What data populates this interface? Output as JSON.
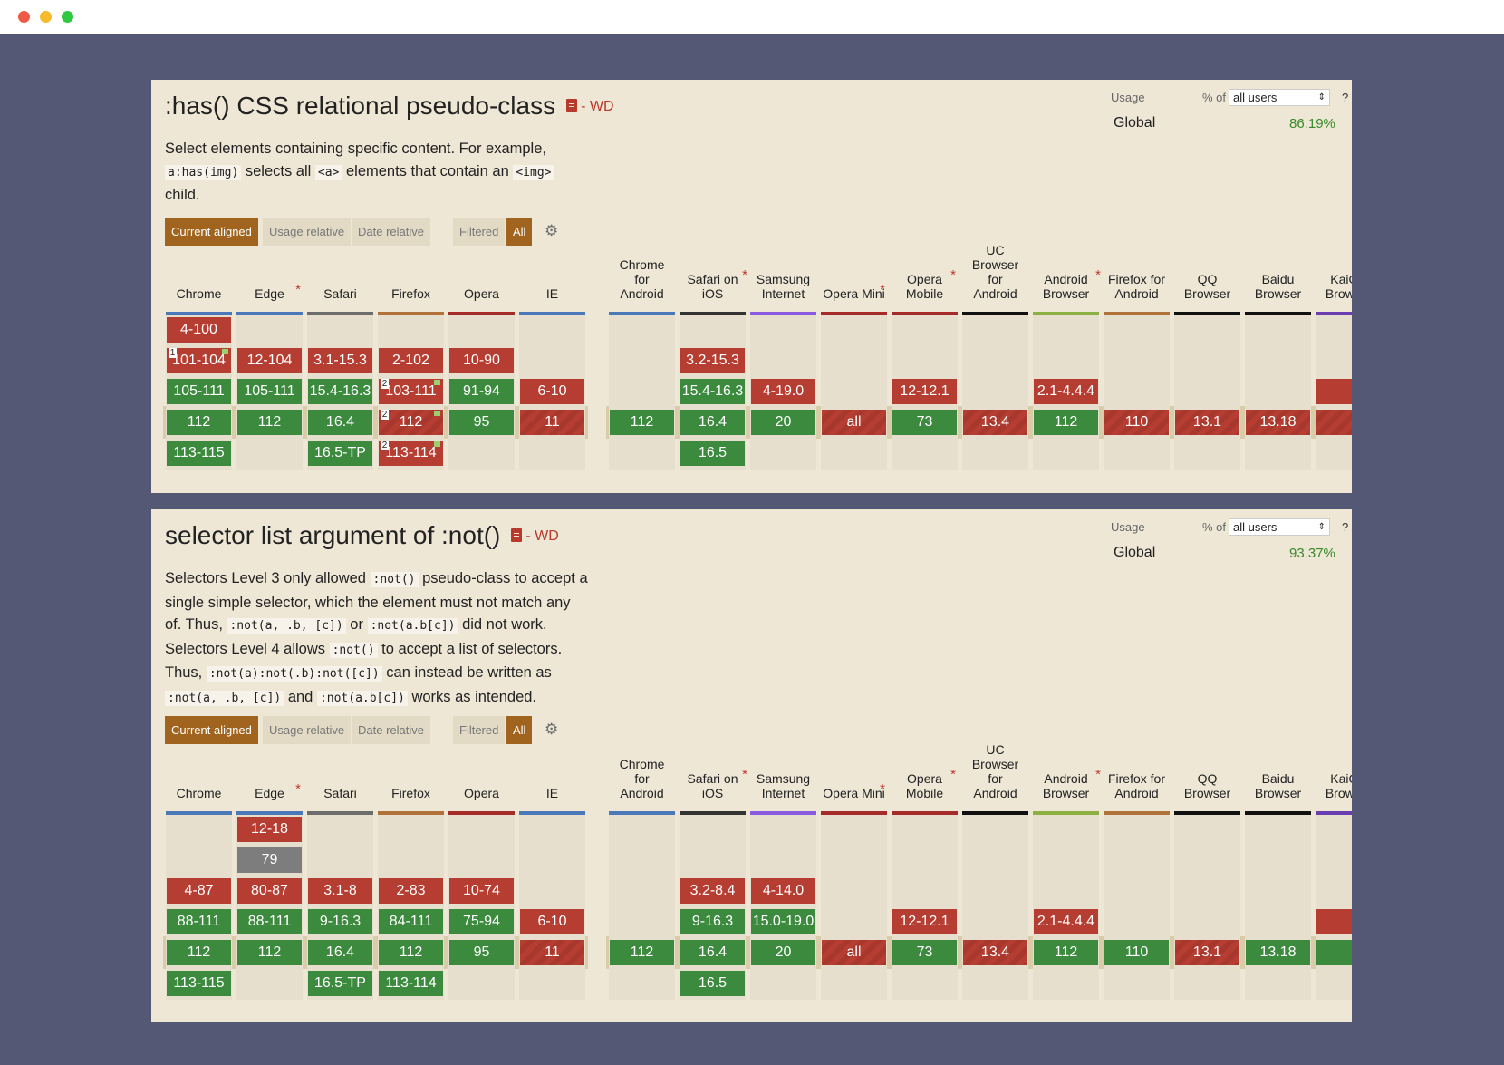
{
  "window": {
    "controls": [
      "close",
      "minimize",
      "maximize"
    ]
  },
  "cards": [
    {
      "title": ":has() CSS relational pseudo-class",
      "status": "- WD",
      "description_html": "Select elements containing specific content. For example, <code>a:has(img)</code> selects all <code>&lt;a&gt;</code> elements that contain an <code>&lt;img&gt;</code> child.",
      "usage": {
        "label": "Usage",
        "pct_of": "% of",
        "select_value": "all users",
        "help": "?",
        "global_label": "Global",
        "global_value": "86.19%"
      },
      "toolbar": {
        "current_aligned": "Current aligned",
        "usage_relative": "Usage relative",
        "date_relative": "Date relative",
        "filtered": "Filtered",
        "all": "All"
      },
      "desktop": [
        {
          "name": "Chrome",
          "star": false,
          "color": "#4a78b8",
          "cells": [
            [
              "n",
              "4-100"
            ],
            [
              "n",
              "101-104",
              1,
              true
            ],
            [
              "y",
              "105-111"
            ],
            [
              "y",
              "112"
            ],
            [
              "y",
              "113-115"
            ]
          ]
        },
        {
          "name": "Edge",
          "star": true,
          "color": "#4a78b8",
          "cells": [
            [],
            [
              "n",
              "12-104"
            ],
            [
              "y",
              "105-111"
            ],
            [
              "y",
              "112"
            ],
            []
          ]
        },
        {
          "name": "Safari",
          "star": false,
          "color": "#6d6d6d",
          "cells": [
            [],
            [
              "n",
              "3.1-15.3"
            ],
            [
              "y",
              "15.4-16.3"
            ],
            [
              "y",
              "16.4"
            ],
            [
              "y",
              "16.5-TP"
            ]
          ]
        },
        {
          "name": "Firefox",
          "star": false,
          "color": "#b07238",
          "cells": [
            [],
            [
              "n",
              "2-102"
            ],
            [
              "n",
              "103-111",
              2,
              true
            ],
            [
              "n",
              "112",
              2,
              true
            ],
            [
              "n",
              "113-114",
              2,
              true
            ]
          ]
        },
        {
          "name": "Opera",
          "star": false,
          "color": "#a52a2a",
          "cells": [
            [],
            [
              "n",
              "10-90"
            ],
            [
              "y",
              "91-94"
            ],
            [
              "y",
              "95"
            ],
            []
          ]
        },
        {
          "name": "IE",
          "star": false,
          "color": "#4a78b8",
          "cells": [
            [],
            [],
            [
              "n",
              "6-10"
            ],
            [
              "n",
              "11"
            ],
            []
          ]
        }
      ],
      "mobile": [
        {
          "name": "Chrome for Android",
          "star": false,
          "color": "#4a78b8",
          "cells": [
            [],
            [],
            [],
            [
              "y",
              "112"
            ],
            []
          ]
        },
        {
          "name": "Safari on iOS",
          "star": true,
          "color": "#333333",
          "cells": [
            [],
            [
              "n",
              "3.2-15.3"
            ],
            [
              "y",
              "15.4-16.3"
            ],
            [
              "y",
              "16.4"
            ],
            [
              "y",
              "16.5"
            ]
          ]
        },
        {
          "name": "Samsung Internet",
          "star": false,
          "color": "#8a5be0",
          "cells": [
            [],
            [],
            [
              "n",
              "4-19.0"
            ],
            [
              "y",
              "20"
            ],
            []
          ]
        },
        {
          "name": "Opera Mini",
          "star": true,
          "color": "#a52a2a",
          "cells": [
            [],
            [],
            [],
            [
              "n",
              "all"
            ],
            []
          ]
        },
        {
          "name": "Opera Mobile",
          "star": true,
          "color": "#a52a2a",
          "cells": [
            [],
            [],
            [
              "n",
              "12-12.1"
            ],
            [
              "y",
              "73"
            ],
            []
          ]
        },
        {
          "name": "UC Browser for Android",
          "star": false,
          "color": "#111111",
          "cells": [
            [],
            [],
            [],
            [
              "n",
              "13.4"
            ],
            []
          ]
        },
        {
          "name": "Android Browser",
          "star": true,
          "color": "#8cb042",
          "cells": [
            [],
            [],
            [
              "n",
              "2.1-4.4.4"
            ],
            [
              "y",
              "112"
            ],
            []
          ]
        },
        {
          "name": "Firefox for Android",
          "star": false,
          "color": "#b07238",
          "cells": [
            [],
            [],
            [],
            [
              "n",
              "110"
            ],
            []
          ]
        },
        {
          "name": "QQ Browser",
          "star": false,
          "color": "#111111",
          "cells": [
            [],
            [],
            [],
            [
              "n",
              "13.1"
            ],
            []
          ]
        },
        {
          "name": "Baidu Browser",
          "star": false,
          "color": "#111111",
          "cells": [
            [],
            [],
            [],
            [
              "n",
              "13.18"
            ],
            []
          ]
        },
        {
          "name": "KaiOS Browser",
          "star": false,
          "color": "#6a3db0",
          "cells": [
            [],
            [],
            [
              "n",
              ""
            ],
            [
              "n",
              ""
            ],
            []
          ]
        }
      ]
    },
    {
      "title": "selector list argument of :not()",
      "status": "- WD",
      "description_html": "Selectors Level 3 only allowed <code>:not()</code> pseudo-class to accept a single simple selector, which the element must not match any of. Thus, <code>:not(a, .b, [c])</code> or <code>:not(a.b[c])</code> did not work. Selectors Level 4 allows <code>:not()</code> to accept a list of selectors. Thus, <code>:not(a):not(.b):not([c])</code> can instead be written as <code>:not(a, .b, [c])</code> and <code>:not(a.b[c])</code> works as intended.",
      "usage": {
        "label": "Usage",
        "pct_of": "% of",
        "select_value": "all users",
        "help": "?",
        "global_label": "Global",
        "global_value": "93.37%"
      },
      "toolbar": {
        "current_aligned": "Current aligned",
        "usage_relative": "Usage relative",
        "date_relative": "Date relative",
        "filtered": "Filtered",
        "all": "All"
      },
      "desktop": [
        {
          "name": "Chrome",
          "star": false,
          "color": "#4a78b8",
          "cells": [
            [],
            [],
            [
              "n",
              "4-87"
            ],
            [
              "y",
              "88-111"
            ],
            [
              "y",
              "112"
            ],
            [
              "y",
              "113-115"
            ]
          ]
        },
        {
          "name": "Edge",
          "star": true,
          "color": "#4a78b8",
          "cells": [
            [
              "n",
              "12-18"
            ],
            [
              "u",
              "79"
            ],
            [
              "n",
              "80-87"
            ],
            [
              "y",
              "88-111"
            ],
            [
              "y",
              "112"
            ],
            []
          ]
        },
        {
          "name": "Safari",
          "star": false,
          "color": "#6d6d6d",
          "cells": [
            [],
            [],
            [
              "n",
              "3.1-8"
            ],
            [
              "y",
              "9-16.3"
            ],
            [
              "y",
              "16.4"
            ],
            [
              "y",
              "16.5-TP"
            ]
          ]
        },
        {
          "name": "Firefox",
          "star": false,
          "color": "#b07238",
          "cells": [
            [],
            [],
            [
              "n",
              "2-83"
            ],
            [
              "y",
              "84-111"
            ],
            [
              "y",
              "112"
            ],
            [
              "y",
              "113-114"
            ]
          ]
        },
        {
          "name": "Opera",
          "star": false,
          "color": "#a52a2a",
          "cells": [
            [],
            [],
            [
              "n",
              "10-74"
            ],
            [
              "y",
              "75-94"
            ],
            [
              "y",
              "95"
            ],
            []
          ]
        },
        {
          "name": "IE",
          "star": false,
          "color": "#4a78b8",
          "cells": [
            [],
            [],
            [],
            [
              "n",
              "6-10"
            ],
            [
              "n",
              "11"
            ],
            []
          ]
        }
      ],
      "mobile": [
        {
          "name": "Chrome for Android",
          "star": false,
          "color": "#4a78b8",
          "cells": [
            [],
            [],
            [],
            [],
            [
              "y",
              "112"
            ],
            []
          ]
        },
        {
          "name": "Safari on iOS",
          "star": true,
          "color": "#333333",
          "cells": [
            [],
            [],
            [
              "n",
              "3.2-8.4"
            ],
            [
              "y",
              "9-16.3"
            ],
            [
              "y",
              "16.4"
            ],
            [
              "y",
              "16.5"
            ]
          ]
        },
        {
          "name": "Samsung Internet",
          "star": false,
          "color": "#8a5be0",
          "cells": [
            [],
            [],
            [
              "n",
              "4-14.0"
            ],
            [
              "y",
              "15.0-19.0"
            ],
            [
              "y",
              "20"
            ],
            []
          ]
        },
        {
          "name": "Opera Mini",
          "star": true,
          "color": "#a52a2a",
          "cells": [
            [],
            [],
            [],
            [],
            [
              "n",
              "all"
            ],
            []
          ]
        },
        {
          "name": "Opera Mobile",
          "star": true,
          "color": "#a52a2a",
          "cells": [
            [],
            [],
            [],
            [
              "n",
              "12-12.1"
            ],
            [
              "y",
              "73"
            ],
            []
          ]
        },
        {
          "name": "UC Browser for Android",
          "star": false,
          "color": "#111111",
          "cells": [
            [],
            [],
            [],
            [],
            [
              "n",
              "13.4"
            ],
            []
          ]
        },
        {
          "name": "Android Browser",
          "star": true,
          "color": "#8cb042",
          "cells": [
            [],
            [],
            [],
            [
              "n",
              "2.1-4.4.4"
            ],
            [
              "y",
              "112"
            ],
            []
          ]
        },
        {
          "name": "Firefox for Android",
          "star": false,
          "color": "#b07238",
          "cells": [
            [],
            [],
            [],
            [],
            [
              "y",
              "110"
            ],
            []
          ]
        },
        {
          "name": "QQ Browser",
          "star": false,
          "color": "#111111",
          "cells": [
            [],
            [],
            [],
            [],
            [
              "n",
              "13.1"
            ],
            []
          ]
        },
        {
          "name": "Baidu Browser",
          "star": false,
          "color": "#111111",
          "cells": [
            [],
            [],
            [],
            [],
            [
              "y",
              "13.18"
            ],
            []
          ]
        },
        {
          "name": "KaiOS Browser",
          "star": false,
          "color": "#6a3db0",
          "cells": [
            [],
            [],
            [],
            [
              "n",
              ""
            ],
            [
              "y",
              ""
            ],
            []
          ]
        }
      ]
    }
  ]
}
